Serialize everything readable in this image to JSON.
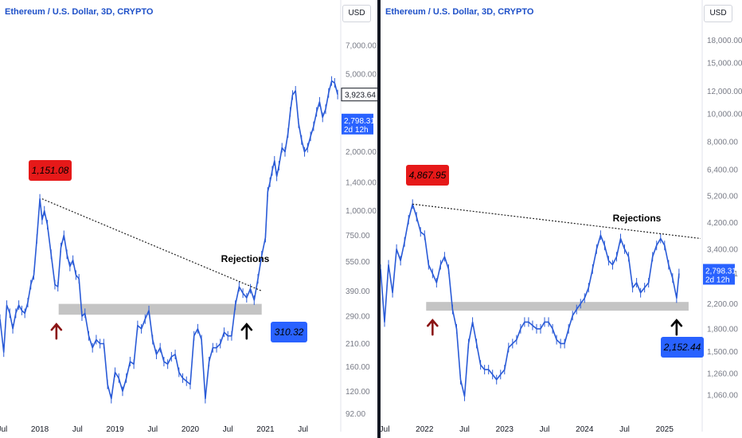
{
  "colors": {
    "candle": "#2a5bd7",
    "support_zone": "#c4c4c4",
    "annotation_red": "#e61919",
    "annotation_blue": "#2962ff",
    "arrow_red": "#8b1414",
    "arrow_black": "#000000",
    "trendline": "#222222",
    "last_price": "#2962ff",
    "ath_label_border": "#131722"
  },
  "chart_data": [
    {
      "type": "line",
      "title": "Ethereum / U.S. Dollar, 3D, CRYPTO",
      "currency": "USD",
      "scale": "log",
      "ylim": [
        90,
        9000
      ],
      "y_ticks": [
        "7,000.00",
        "5,000.00",
        "2,000.00",
        "1,400.00",
        "1,000.00",
        "750.00",
        "550.00",
        "390.00",
        "290.00",
        "210.00",
        "160.00",
        "120.00",
        "92.00"
      ],
      "x_ticks": [
        "Jul",
        "2018",
        "Jul",
        "2019",
        "Jul",
        "2020",
        "Jul",
        "2021",
        "Jul"
      ],
      "x_tick_years": [
        2017.5,
        2018.0,
        2018.5,
        2019.0,
        2019.5,
        2020.0,
        2020.5,
        2021.0,
        2021.5
      ],
      "xlim": [
        2017.47,
        2021.98
      ],
      "series": [
        {
          "x": [
            2017.47,
            2017.52,
            2017.56,
            2017.6,
            2017.64,
            2017.68,
            2017.72,
            2017.76,
            2017.8,
            2017.84,
            2017.88,
            2017.92,
            2017.96,
            2018.0,
            2018.03,
            2018.06,
            2018.1,
            2018.15,
            2018.2,
            2018.24,
            2018.28,
            2018.32,
            2018.36,
            2018.4,
            2018.44,
            2018.48,
            2018.52,
            2018.56,
            2018.6,
            2018.65,
            2018.7,
            2018.75,
            2018.8,
            2018.85,
            2018.9,
            2018.95,
            2019.0,
            2019.05,
            2019.1,
            2019.15,
            2019.2,
            2019.25,
            2019.3,
            2019.35,
            2019.4,
            2019.45,
            2019.5,
            2019.55,
            2019.6,
            2019.65,
            2019.7,
            2019.75,
            2019.8,
            2019.85,
            2019.9,
            2019.95,
            2020.0,
            2020.05,
            2020.1,
            2020.15,
            2020.2,
            2020.25,
            2020.3,
            2020.35,
            2020.4,
            2020.45,
            2020.5,
            2020.55,
            2020.6,
            2020.65,
            2020.7,
            2020.75,
            2020.8,
            2020.85,
            2020.9,
            2020.95,
            2021.0,
            2021.03,
            2021.06,
            2021.09,
            2021.12,
            2021.15,
            2021.18,
            2021.22,
            2021.26,
            2021.3,
            2021.33,
            2021.36,
            2021.4,
            2021.44,
            2021.48,
            2021.52,
            2021.56,
            2021.6,
            2021.64,
            2021.68,
            2021.72,
            2021.76,
            2021.8,
            2021.84,
            2021.88,
            2021.92,
            2021.96
          ],
          "y": [
            280,
            190,
            330,
            300,
            250,
            300,
            330,
            310,
            300,
            340,
            420,
            470,
            720,
            1151,
            900,
            1000,
            850,
            600,
            420,
            410,
            650,
            750,
            600,
            520,
            560,
            470,
            450,
            290,
            300,
            230,
            200,
            220,
            210,
            210,
            130,
            110,
            150,
            140,
            120,
            140,
            170,
            165,
            260,
            250,
            280,
            310,
            220,
            185,
            200,
            170,
            165,
            180,
            185,
            150,
            140,
            135,
            130,
            230,
            250,
            220,
            110,
            170,
            200,
            200,
            210,
            240,
            230,
            230,
            330,
            410,
            380,
            360,
            400,
            350,
            450,
            590,
            730,
            1250,
            1400,
            1600,
            1800,
            1500,
            1700,
            2100,
            2000,
            2500,
            3200,
            3900,
            4100,
            2800,
            2300,
            2000,
            2100,
            2400,
            2700,
            3200,
            3600,
            3000,
            3300,
            4000,
            4600,
            4500,
            3923.64
          ]
        }
      ],
      "annotations": {
        "high_label": "1,151.08",
        "low_label": "310.32",
        "rejections_label": "Rejections",
        "trendline_start_value": 1151.08,
        "trendline_end_value": 390,
        "trendline_start_x": 2018.03,
        "trendline_end_x": 2020.95,
        "support_zone": [
          295,
          335
        ],
        "support_zone_x": [
          2018.25,
          2020.95
        ],
        "red_arrow_x": 2018.22,
        "black_arrow_x": 2020.75
      },
      "price_tags": [
        {
          "text": "3,923.64",
          "value": 3923.64,
          "style": "outline"
        },
        {
          "text": "2,798.31",
          "sub": "2d 12h",
          "value": 2798.31,
          "style": "filled"
        }
      ]
    },
    {
      "type": "line",
      "title": "Ethereum / U.S. Dollar, 3D, CRYPTO",
      "currency": "USD",
      "scale": "log",
      "ylim": [
        900,
        20500
      ],
      "y_ticks": [
        "18,000.00",
        "15,000.00",
        "12,000.00",
        "10,000.00",
        "8,000.00",
        "6,400.00",
        "5,200.00",
        "4,200.00",
        "3,400.00",
        "2,798.31",
        "2,200.00",
        "1,800.00",
        "1,500.00",
        "1,260.00",
        "1,060.00"
      ],
      "x_ticks": [
        "Jul",
        "2022",
        "Jul",
        "2023",
        "Jul",
        "2024",
        "Jul",
        "2025"
      ],
      "x_tick_years": [
        2021.5,
        2022.0,
        2022.5,
        2023.0,
        2023.5,
        2024.0,
        2024.5,
        2025.0
      ],
      "xlim": [
        2021.45,
        2025.45
      ],
      "series": [
        {
          "x": [
            2021.45,
            2021.5,
            2021.55,
            2021.6,
            2021.65,
            2021.7,
            2021.75,
            2021.8,
            2021.85,
            2021.9,
            2021.95,
            2022.0,
            2022.05,
            2022.1,
            2022.15,
            2022.2,
            2022.25,
            2022.3,
            2022.35,
            2022.4,
            2022.45,
            2022.5,
            2022.55,
            2022.6,
            2022.65,
            2022.7,
            2022.75,
            2022.8,
            2022.85,
            2022.9,
            2022.95,
            2023.0,
            2023.05,
            2023.1,
            2023.15,
            2023.2,
            2023.25,
            2023.3,
            2023.35,
            2023.4,
            2023.45,
            2023.5,
            2023.55,
            2023.6,
            2023.65,
            2023.7,
            2023.75,
            2023.8,
            2023.85,
            2023.9,
            2023.95,
            2024.0,
            2024.05,
            2024.1,
            2024.15,
            2024.2,
            2024.25,
            2024.3,
            2024.35,
            2024.4,
            2024.45,
            2024.5,
            2024.55,
            2024.6,
            2024.65,
            2024.7,
            2024.75,
            2024.8,
            2024.85,
            2024.9,
            2024.95,
            2025.0,
            2025.05,
            2025.1,
            2025.15,
            2025.18
          ],
          "y": [
            2900,
            1900,
            3000,
            2400,
            3400,
            3100,
            3600,
            4300,
            4867.95,
            4400,
            3900,
            3800,
            3000,
            2800,
            2600,
            3000,
            3200,
            2900,
            2100,
            1800,
            1200,
            1050,
            1600,
            1900,
            1600,
            1350,
            1300,
            1300,
            1250,
            1200,
            1250,
            1300,
            1550,
            1600,
            1650,
            1800,
            1900,
            1900,
            1850,
            1800,
            1800,
            1900,
            1900,
            1800,
            1650,
            1600,
            1600,
            1800,
            2000,
            2100,
            2200,
            2300,
            2500,
            2900,
            3400,
            3800,
            3500,
            3100,
            3000,
            3200,
            3700,
            3400,
            3200,
            2500,
            2600,
            2400,
            2500,
            2600,
            3200,
            3500,
            3700,
            3500,
            3000,
            2700,
            2300,
            2798.31
          ]
        }
      ],
      "annotations": {
        "high_label": "4,867.95",
        "low_label": "2,152.44",
        "rejections_label": "Rejections",
        "trendline_start_value": 4867.95,
        "trendline_end_value": 3700,
        "trendline_start_x": 2021.85,
        "trendline_end_x": 2025.45,
        "support_zone": [
          2080,
          2230
        ],
        "support_zone_x": [
          2022.02,
          2025.3
        ],
        "red_arrow_x": 2022.1,
        "black_arrow_x": 2025.15
      },
      "price_tags": [
        {
          "text": "2,798.31",
          "sub": "2d 12h",
          "value": 2798.31,
          "style": "filled"
        }
      ]
    }
  ]
}
